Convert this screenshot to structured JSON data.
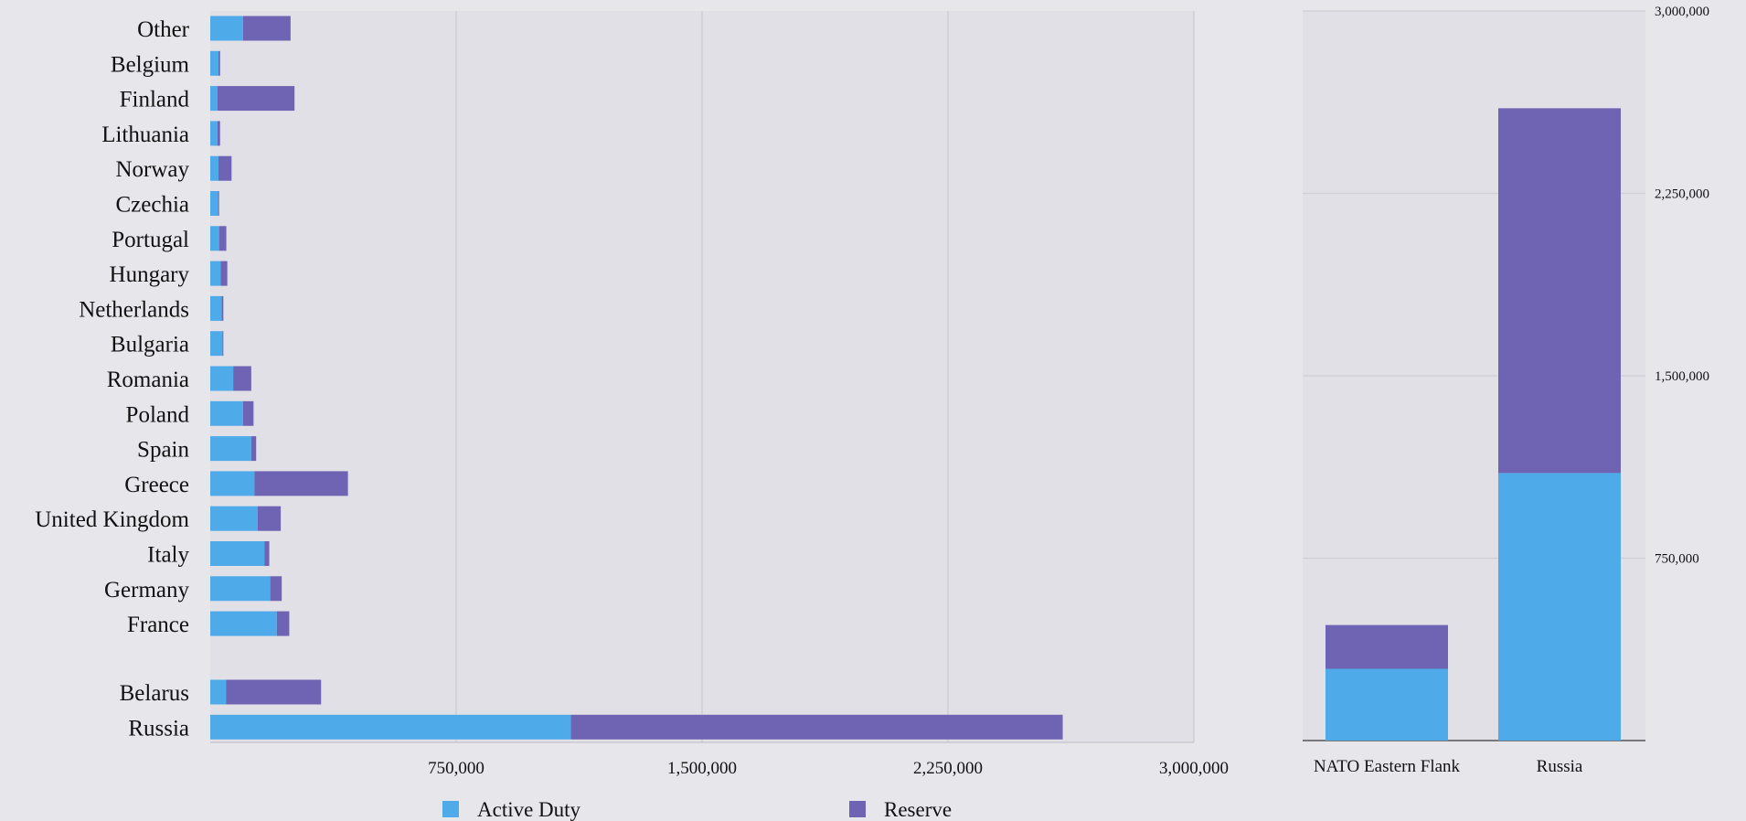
{
  "colors": {
    "active": "#4eaae9",
    "reserve": "#6f63b3",
    "plot_bg": "#e2e0e7",
    "grid": "#cfcdd6",
    "axis": "#555555"
  },
  "legend": [
    {
      "name": "Active Duty",
      "color": "#4eaae9"
    },
    {
      "name": "Reserve",
      "color": "#6f63b3"
    }
  ],
  "chart_data": [
    {
      "type": "bar",
      "orientation": "horizontal",
      "stacked": true,
      "xlim": [
        0,
        3000000
      ],
      "xticks": [
        750000,
        1500000,
        2250000,
        3000000
      ],
      "xtick_labels": [
        "750,000",
        "1,500,000",
        "2,250,000",
        "3,000,000"
      ],
      "grid": true,
      "legend_position": "bottom",
      "categories": [
        "Other",
        "Belgium",
        "Finland",
        "Lithuania",
        "Norway",
        "Czechia",
        "Portugal",
        "Hungary",
        "Netherlands",
        "Bulgaria",
        "Romania",
        "Poland",
        "Spain",
        "Greece",
        "United Kingdom",
        "Italy",
        "Germany",
        "France",
        "Belarus",
        "Russia"
      ],
      "series": [
        {
          "name": "Active Duty",
          "values": [
            100000,
            25000,
            22000,
            22000,
            25000,
            24000,
            27000,
            32000,
            35000,
            37000,
            70000,
            100000,
            125000,
            135000,
            145000,
            165000,
            183000,
            203000,
            48000,
            1100000
          ]
        },
        {
          "name": "Reserve",
          "values": [
            145000,
            5000,
            235000,
            8000,
            40000,
            3000,
            22000,
            20000,
            5000,
            3000,
            55000,
            32000,
            15000,
            285000,
            70000,
            15000,
            35000,
            38000,
            290000,
            1500000
          ]
        }
      ]
    },
    {
      "type": "bar",
      "orientation": "vertical",
      "stacked": true,
      "ylim": [
        0,
        3000000
      ],
      "yticks": [
        750000,
        1500000,
        2250000,
        3000000
      ],
      "ytick_labels": [
        "750,000",
        "1,500,000",
        "2,250,000",
        "3,000,000"
      ],
      "grid": true,
      "categories": [
        "NATO Eastern Flank",
        "Russia"
      ],
      "series": [
        {
          "name": "Active Duty",
          "values": [
            295000,
            1100000
          ]
        },
        {
          "name": "Reserve",
          "values": [
            180000,
            1500000
          ]
        }
      ]
    }
  ]
}
